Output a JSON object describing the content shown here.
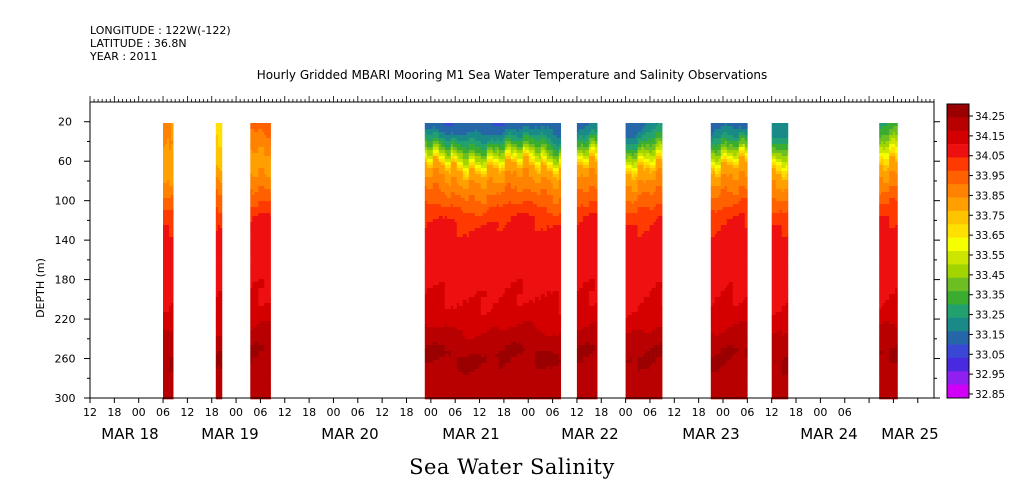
{
  "header": {
    "longitude": "LONGITUDE : 122W(-122)",
    "latitude": "LATITUDE : 36.8N",
    "year": "YEAR : 2011"
  },
  "chart_data": {
    "type": "heatmap",
    "title": "Hourly Gridded MBARI Mooring M1 Sea Water Temperature and Salinity Observations",
    "xlabel": "Sea Water Salinity",
    "ylabel": "DEPTH (m)",
    "ylim": [
      300,
      0
    ],
    "y_ticks": [
      20,
      60,
      100,
      140,
      180,
      220,
      260,
      300
    ],
    "x_range_hours": [
      -12,
      168
    ],
    "x_hour_ticks": [
      "12",
      "18",
      "00",
      "06",
      "12",
      "18",
      "00",
      "06",
      "12",
      "18",
      "00",
      "06",
      "12",
      "18",
      "00",
      "06",
      "12",
      "18",
      "00",
      "06",
      "12",
      "18",
      "00",
      "06",
      "12",
      "18",
      "00",
      "06",
      "12",
      "18",
      "00",
      "06"
    ],
    "date_labels": [
      "MAR 18",
      "MAR 19",
      "MAR 20",
      "MAR 21",
      "MAR 22",
      "MAR 23",
      "MAR 24",
      "MAR 25"
    ],
    "colorbar_levels": [
      32.85,
      32.95,
      33.05,
      33.15,
      33.25,
      33.35,
      33.45,
      33.55,
      33.65,
      33.75,
      33.85,
      33.95,
      34.05,
      34.15,
      34.25
    ],
    "colorbar_colors": [
      "#9a0000",
      "#b90000",
      "#d40000",
      "#ee1010",
      "#ff3a00",
      "#ff6000",
      "#ff8200",
      "#ffa000",
      "#ffc400",
      "#ffe000",
      "#f6ff00",
      "#cde600",
      "#a2d400",
      "#6cbe22",
      "#3aac30",
      "#23a070",
      "#1a8a88",
      "#2466a8",
      "#3a46d4",
      "#4a2ae0",
      "#9020f0",
      "#d000f8"
    ],
    "data_blocks": [
      {
        "t_start": 6.0,
        "t_end": 8.5,
        "upper": 33.8
      },
      {
        "t_start": 19.0,
        "t_end": 20.5,
        "upper": 33.6
      },
      {
        "t_start": 27.5,
        "t_end": 32.5,
        "upper": 33.9
      },
      {
        "t_start": 70.5,
        "t_end": 104.0,
        "upper": 33.05
      },
      {
        "t_start": 108.0,
        "t_end": 113.0,
        "upper": 33.05
      },
      {
        "t_start": 120.0,
        "t_end": 129.0,
        "upper": 33.1
      },
      {
        "t_start": 141.0,
        "t_end": 150.0,
        "upper": 33.05
      },
      {
        "t_start": 156.0,
        "t_end": 160.0,
        "upper": 33.1
      },
      {
        "t_start": 182.5,
        "t_end": 187.0,
        "upper": 33.25
      }
    ],
    "legend": "right colorbar"
  }
}
